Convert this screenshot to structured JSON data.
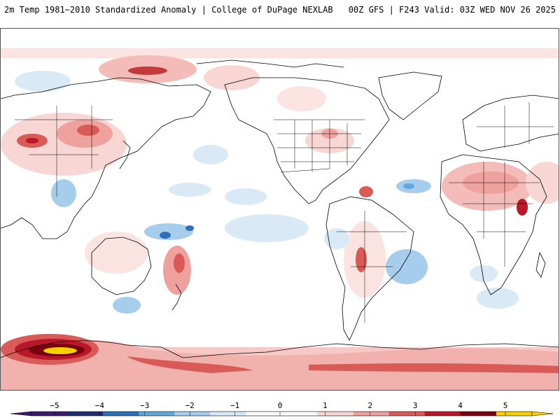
{
  "header": {
    "title": "2m Temp 1981−2010 Standardized Anomaly | College of DuPage NEXLAB",
    "run_info": "00Z GFS | F243 Valid: 03Z WED NOV 26 2025"
  },
  "colorbar": {
    "labels": [
      "−5",
      "−4",
      "−3",
      "−2",
      "−1",
      "0",
      "1",
      "2",
      "3",
      "4",
      "5"
    ],
    "colors": [
      "#3b1a6b",
      "#1f2f6e",
      "#2f6fb8",
      "#62a7db",
      "#a6cdeb",
      "#d9e9f6",
      "#ffffff",
      "#ffffff",
      "#f8d6d4",
      "#eea19d",
      "#d95b57",
      "#b8182a",
      "#7a0010",
      "#f7d000"
    ]
  },
  "colors": {
    "coast": "#000000",
    "border": "#000000",
    "frame": "#555555"
  }
}
